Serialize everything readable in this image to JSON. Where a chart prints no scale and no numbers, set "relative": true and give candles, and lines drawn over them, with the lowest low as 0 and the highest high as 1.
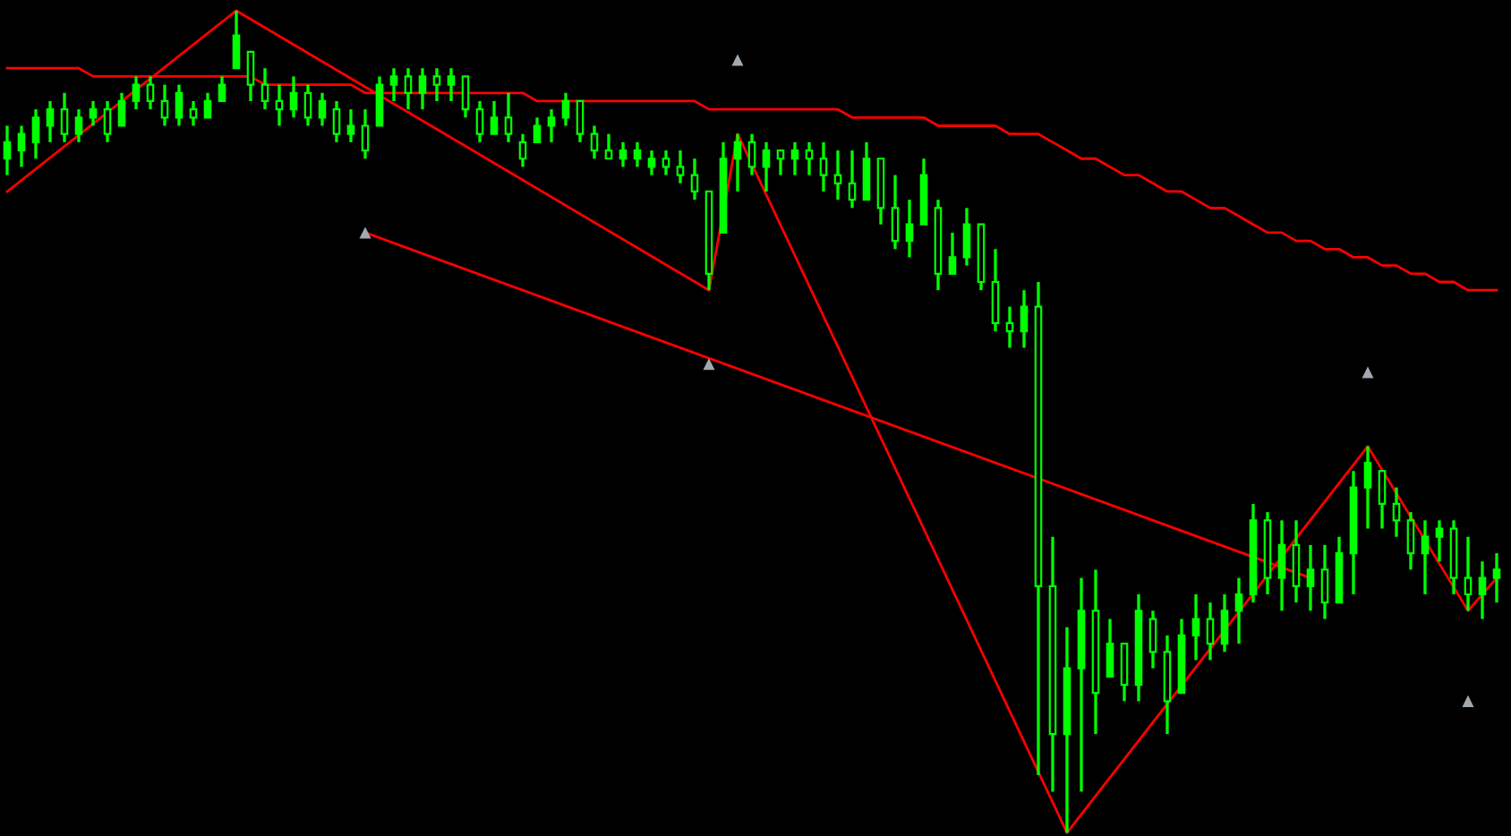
{
  "chart_data": {
    "type": "candlestick",
    "relative": true,
    "color": "#00ff00",
    "categories": [
      null,
      null,
      null,
      null,
      null,
      null,
      null,
      null,
      null,
      null,
      null,
      null,
      null,
      null,
      null,
      null,
      null,
      null,
      null,
      null,
      null,
      null,
      null,
      null,
      null,
      null,
      null,
      null,
      null,
      null,
      null,
      null,
      null,
      null,
      null,
      null,
      null,
      null,
      null,
      null,
      null,
      null,
      null,
      null,
      null,
      null,
      null,
      null,
      null,
      null,
      null,
      null,
      null,
      null,
      null,
      null,
      null,
      null,
      null,
      null,
      null,
      null,
      null,
      null,
      null,
      null,
      null,
      null,
      null,
      null,
      null,
      null,
      null,
      null,
      null,
      null,
      null,
      null,
      null,
      null,
      null,
      null,
      null,
      null,
      null,
      null,
      null,
      null,
      null,
      null,
      null,
      null,
      null,
      null,
      null,
      null,
      null,
      null,
      null,
      null,
      null,
      null,
      null,
      null,
      null
    ],
    "ohlc": [
      [
        0.82,
        0.86,
        0.8,
        0.84
      ],
      [
        0.83,
        0.86,
        0.81,
        0.85
      ],
      [
        0.84,
        0.88,
        0.82,
        0.87
      ],
      [
        0.86,
        0.89,
        0.84,
        0.88
      ],
      [
        0.88,
        0.9,
        0.84,
        0.85
      ],
      [
        0.85,
        0.88,
        0.84,
        0.87
      ],
      [
        0.87,
        0.89,
        0.86,
        0.88
      ],
      [
        0.88,
        0.89,
        0.84,
        0.85
      ],
      [
        0.86,
        0.9,
        0.86,
        0.89
      ],
      [
        0.89,
        0.92,
        0.88,
        0.91
      ],
      [
        0.91,
        0.92,
        0.88,
        0.89
      ],
      [
        0.89,
        0.91,
        0.86,
        0.87
      ],
      [
        0.87,
        0.91,
        0.86,
        0.9
      ],
      [
        0.88,
        0.89,
        0.86,
        0.87
      ],
      [
        0.87,
        0.9,
        0.87,
        0.89
      ],
      [
        0.89,
        0.92,
        0.89,
        0.91
      ],
      [
        0.93,
        1.0,
        0.93,
        0.97
      ],
      [
        0.95,
        0.95,
        0.89,
        0.91
      ],
      [
        0.91,
        0.93,
        0.88,
        0.89
      ],
      [
        0.89,
        0.91,
        0.86,
        0.88
      ],
      [
        0.88,
        0.92,
        0.87,
        0.9
      ],
      [
        0.9,
        0.91,
        0.86,
        0.87
      ],
      [
        0.87,
        0.9,
        0.86,
        0.89
      ],
      [
        0.88,
        0.89,
        0.84,
        0.85
      ],
      [
        0.85,
        0.88,
        0.84,
        0.86
      ],
      [
        0.86,
        0.88,
        0.82,
        0.83
      ],
      [
        0.86,
        0.92,
        0.86,
        0.91
      ],
      [
        0.91,
        0.93,
        0.89,
        0.92
      ],
      [
        0.92,
        0.93,
        0.88,
        0.9
      ],
      [
        0.9,
        0.93,
        0.88,
        0.92
      ],
      [
        0.92,
        0.93,
        0.89,
        0.91
      ],
      [
        0.91,
        0.93,
        0.89,
        0.92
      ],
      [
        0.92,
        0.92,
        0.87,
        0.88
      ],
      [
        0.88,
        0.89,
        0.84,
        0.85
      ],
      [
        0.85,
        0.89,
        0.85,
        0.87
      ],
      [
        0.87,
        0.9,
        0.84,
        0.85
      ],
      [
        0.84,
        0.85,
        0.81,
        0.82
      ],
      [
        0.84,
        0.87,
        0.84,
        0.86
      ],
      [
        0.86,
        0.88,
        0.84,
        0.87
      ],
      [
        0.87,
        0.9,
        0.86,
        0.89
      ],
      [
        0.89,
        0.89,
        0.84,
        0.85
      ],
      [
        0.85,
        0.86,
        0.82,
        0.83
      ],
      [
        0.83,
        0.85,
        0.82,
        0.82
      ],
      [
        0.82,
        0.84,
        0.81,
        0.83
      ],
      [
        0.82,
        0.84,
        0.81,
        0.83
      ],
      [
        0.81,
        0.83,
        0.8,
        0.82
      ],
      [
        0.82,
        0.83,
        0.8,
        0.81
      ],
      [
        0.81,
        0.83,
        0.79,
        0.8
      ],
      [
        0.8,
        0.82,
        0.77,
        0.78
      ],
      [
        0.78,
        0.78,
        0.66,
        0.68
      ],
      [
        0.73,
        0.84,
        0.73,
        0.82
      ],
      [
        0.82,
        0.85,
        0.78,
        0.84
      ],
      [
        0.84,
        0.85,
        0.8,
        0.81
      ],
      [
        0.81,
        0.84,
        0.78,
        0.83
      ],
      [
        0.83,
        0.83,
        0.8,
        0.82
      ],
      [
        0.82,
        0.84,
        0.8,
        0.83
      ],
      [
        0.83,
        0.84,
        0.8,
        0.82
      ],
      [
        0.82,
        0.84,
        0.78,
        0.8
      ],
      [
        0.8,
        0.83,
        0.77,
        0.79
      ],
      [
        0.79,
        0.83,
        0.76,
        0.77
      ],
      [
        0.77,
        0.84,
        0.77,
        0.82
      ],
      [
        0.82,
        0.82,
        0.74,
        0.76
      ],
      [
        0.76,
        0.8,
        0.71,
        0.72
      ],
      [
        0.72,
        0.77,
        0.7,
        0.74
      ],
      [
        0.74,
        0.82,
        0.74,
        0.8
      ],
      [
        0.76,
        0.77,
        0.66,
        0.68
      ],
      [
        0.68,
        0.73,
        0.68,
        0.7
      ],
      [
        0.7,
        0.76,
        0.69,
        0.74
      ],
      [
        0.74,
        0.74,
        0.66,
        0.67
      ],
      [
        0.67,
        0.71,
        0.61,
        0.62
      ],
      [
        0.62,
        0.64,
        0.59,
        0.61
      ],
      [
        0.61,
        0.66,
        0.59,
        0.64
      ],
      [
        0.64,
        0.67,
        0.07,
        0.3
      ],
      [
        0.3,
        0.36,
        0.05,
        0.12
      ],
      [
        0.12,
        0.25,
        0.0,
        0.2
      ],
      [
        0.2,
        0.31,
        0.05,
        0.27
      ],
      [
        0.27,
        0.32,
        0.12,
        0.17
      ],
      [
        0.19,
        0.26,
        0.19,
        0.23
      ],
      [
        0.23,
        0.23,
        0.16,
        0.18
      ],
      [
        0.18,
        0.29,
        0.16,
        0.27
      ],
      [
        0.26,
        0.27,
        0.2,
        0.22
      ],
      [
        0.22,
        0.24,
        0.12,
        0.16
      ],
      [
        0.17,
        0.26,
        0.17,
        0.24
      ],
      [
        0.24,
        0.29,
        0.21,
        0.26
      ],
      [
        0.26,
        0.28,
        0.21,
        0.23
      ],
      [
        0.23,
        0.29,
        0.22,
        0.27
      ],
      [
        0.27,
        0.31,
        0.23,
        0.29
      ],
      [
        0.29,
        0.4,
        0.28,
        0.38
      ],
      [
        0.38,
        0.39,
        0.29,
        0.31
      ],
      [
        0.31,
        0.38,
        0.27,
        0.35
      ],
      [
        0.35,
        0.38,
        0.28,
        0.3
      ],
      [
        0.3,
        0.35,
        0.27,
        0.32
      ],
      [
        0.32,
        0.35,
        0.26,
        0.28
      ],
      [
        0.28,
        0.36,
        0.28,
        0.34
      ],
      [
        0.34,
        0.44,
        0.29,
        0.42
      ],
      [
        0.42,
        0.47,
        0.37,
        0.45
      ],
      [
        0.44,
        0.44,
        0.37,
        0.4
      ],
      [
        0.4,
        0.42,
        0.36,
        0.38
      ],
      [
        0.38,
        0.39,
        0.32,
        0.34
      ],
      [
        0.34,
        0.38,
        0.29,
        0.36
      ],
      [
        0.36,
        0.38,
        0.33,
        0.37
      ],
      [
        0.37,
        0.38,
        0.29,
        0.31
      ],
      [
        0.31,
        0.36,
        0.27,
        0.29
      ],
      [
        0.29,
        0.33,
        0.26,
        0.31
      ],
      [
        0.31,
        0.34,
        0.28,
        0.32
      ]
    ],
    "series": [
      {
        "type": "line",
        "color": "#ff0000",
        "values": [
          0.93,
          0.93,
          0.93,
          0.93,
          0.93,
          0.93,
          0.92,
          0.92,
          0.92,
          0.92,
          0.92,
          0.92,
          0.92,
          0.92,
          0.92,
          0.92,
          0.92,
          0.92,
          0.91,
          0.91,
          0.91,
          0.91,
          0.91,
          0.91,
          0.91,
          0.9,
          0.9,
          0.9,
          0.9,
          0.9,
          0.9,
          0.9,
          0.9,
          0.9,
          0.9,
          0.9,
          0.9,
          0.89,
          0.89,
          0.89,
          0.89,
          0.89,
          0.89,
          0.89,
          0.89,
          0.89,
          0.89,
          0.89,
          0.89,
          0.88,
          0.88,
          0.88,
          0.88,
          0.88,
          0.88,
          0.88,
          0.88,
          0.88,
          0.88,
          0.87,
          0.87,
          0.87,
          0.87,
          0.87,
          0.87,
          0.86,
          0.86,
          0.86,
          0.86,
          0.86,
          0.85,
          0.85,
          0.85,
          0.84,
          0.83,
          0.82,
          0.82,
          0.81,
          0.8,
          0.8,
          0.79,
          0.78,
          0.78,
          0.77,
          0.76,
          0.76,
          0.75,
          0.74,
          0.73,
          0.73,
          0.72,
          0.72,
          0.71,
          0.71,
          0.7,
          0.7,
          0.69,
          0.69,
          0.68,
          0.68,
          0.67,
          0.67,
          0.66,
          0.66,
          0.66
        ]
      },
      {
        "type": "line",
        "color": "#ff0000",
        "values": [
          0.78,
          null,
          null,
          null,
          null,
          null,
          null,
          null,
          null,
          null,
          null,
          null,
          null,
          null,
          null,
          null,
          1.0,
          null,
          null,
          null,
          null,
          null,
          null,
          null,
          null,
          null,
          null,
          null,
          null,
          null,
          null,
          null,
          null,
          null,
          null,
          null,
          null,
          null,
          null,
          null,
          null,
          null,
          null,
          null,
          null,
          null,
          null,
          null,
          null,
          0.66,
          null,
          0.85,
          null,
          null,
          null,
          null,
          null,
          null,
          null,
          null,
          null,
          null,
          null,
          null,
          null,
          null,
          null,
          null,
          null,
          null,
          null,
          null,
          null,
          null,
          0.0,
          null,
          null,
          null,
          null,
          null,
          null,
          null,
          null,
          null,
          null,
          null,
          null,
          null,
          null,
          null,
          null,
          null,
          null,
          null,
          null,
          0.47,
          null,
          null,
          null,
          null,
          null,
          null,
          0.27,
          null,
          0.31
        ]
      },
      {
        "type": "line",
        "color": "#ff0000",
        "values": [
          null,
          null,
          null,
          null,
          null,
          null,
          null,
          null,
          null,
          null,
          null,
          null,
          null,
          null,
          null,
          null,
          null,
          null,
          null,
          null,
          null,
          null,
          null,
          null,
          null,
          0.73,
          null,
          null,
          null,
          null,
          null,
          null,
          null,
          null,
          null,
          null,
          null,
          null,
          null,
          null,
          null,
          null,
          null,
          null,
          null,
          null,
          null,
          null,
          null,
          null,
          null,
          null,
          null,
          null,
          null,
          null,
          null,
          null,
          null,
          null,
          null,
          null,
          null,
          null,
          null,
          null,
          null,
          null,
          null,
          null,
          null,
          null,
          null,
          null,
          null,
          null,
          null,
          null,
          null,
          null,
          null,
          null,
          null,
          null,
          null,
          null,
          null,
          null,
          null,
          null,
          null,
          0.31,
          null,
          null,
          null,
          null,
          null,
          null,
          null,
          null,
          null,
          null,
          null,
          null,
          null
        ]
      },
      {
        "type": "scatter",
        "color": "#a0a8b0",
        "marker": "triangle",
        "values": [
          null,
          null,
          null,
          null,
          null,
          null,
          null,
          null,
          null,
          null,
          null,
          null,
          null,
          null,
          null,
          null,
          null,
          null,
          null,
          null,
          null,
          null,
          null,
          null,
          null,
          0.73,
          null,
          null,
          null,
          null,
          null,
          null,
          null,
          null,
          null,
          null,
          null,
          null,
          null,
          null,
          null,
          null,
          null,
          null,
          null,
          null,
          null,
          null,
          null,
          0.57,
          null,
          0.94,
          null,
          null,
          null,
          null,
          null,
          null,
          null,
          null,
          null,
          null,
          null,
          null,
          null,
          null,
          null,
          null,
          null,
          null,
          null,
          null,
          null,
          null,
          null,
          null,
          null,
          null,
          null,
          null,
          null,
          null,
          null,
          null,
          null,
          null,
          null,
          null,
          null,
          null,
          null,
          null,
          null,
          null,
          null,
          0.56,
          null,
          null,
          null,
          null,
          null,
          null,
          0.16,
          null,
          null
        ]
      }
    ]
  }
}
